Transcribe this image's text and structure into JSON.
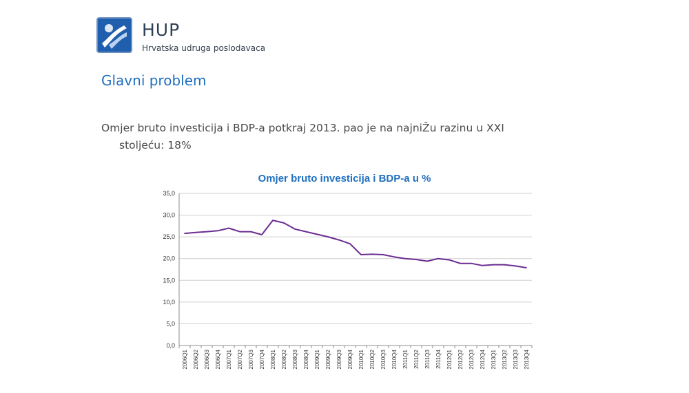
{
  "header": {
    "org_name": "HUP",
    "org_subtitle": "Hrvatska udruga poslodavaca"
  },
  "slide": {
    "title": "Glavni problem",
    "body_line1": "Omjer bruto investicija i BDP-a potkraj 2013. pao je na najniŽu razinu u XXI",
    "body_line2": "stoljeću: 18%"
  },
  "colors": {
    "title": "#1f6fbf",
    "line": "#6a2c91",
    "logo_blue": "#1f5fae",
    "axis": "#8c8c8c",
    "grid": "#cfcfcf"
  },
  "chart_data": {
    "type": "line",
    "title": "Omjer bruto investicija i BDP-a u %",
    "xlabel": "",
    "ylabel": "",
    "ylim": [
      0,
      35
    ],
    "yticks": [
      "0,0",
      "5,0",
      "10,0",
      "15,0",
      "20,0",
      "25,0",
      "30,0",
      "35,0"
    ],
    "grid": true,
    "legend": "none",
    "categories": [
      "2006Q1",
      "2006Q2",
      "2006Q3",
      "2006Q4",
      "2007Q1",
      "2007Q2",
      "2007Q3",
      "2007Q4",
      "2008Q1",
      "2008Q2",
      "2008Q3",
      "2008Q4",
      "2009Q1",
      "2009Q2",
      "2009Q3",
      "2009Q4",
      "2010Q1",
      "2010Q2",
      "2010Q3",
      "2010Q4",
      "2011Q1",
      "2011Q2",
      "2011Q3",
      "2011Q4",
      "2012Q1",
      "2012Q2",
      "2012Q3",
      "2012Q4",
      "2013Q1",
      "2013Q2",
      "2013Q3",
      "2013Q4"
    ],
    "series": [
      {
        "values": [
          25.8,
          26.0,
          26.2,
          26.4,
          27.0,
          26.2,
          26.2,
          25.5,
          28.8,
          28.2,
          26.8,
          26.2,
          25.6,
          25.0,
          24.3,
          23.4,
          20.9,
          21.0,
          20.9,
          20.4,
          20.0,
          19.8,
          19.4,
          20.0,
          19.7,
          18.9,
          18.9,
          18.4,
          18.6,
          18.6,
          18.3,
          17.9
        ]
      }
    ]
  }
}
